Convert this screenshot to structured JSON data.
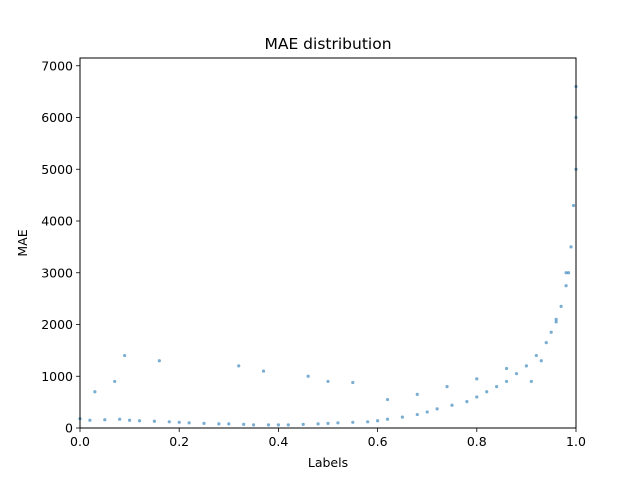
{
  "chart_data": {
    "type": "scatter",
    "title": "MAE distribution",
    "xlabel": "Labels",
    "ylabel": "MAE",
    "xlim": [
      0.0,
      1.0
    ],
    "ylim": [
      0,
      7150
    ],
    "xticks": [
      0.0,
      0.2,
      0.4,
      0.6,
      0.8,
      1.0
    ],
    "xtick_labels": [
      "0.0",
      "0.2",
      "0.4",
      "0.6",
      "0.8",
      "1.0"
    ],
    "yticks": [
      0,
      1000,
      2000,
      3000,
      4000,
      5000,
      6000,
      7000
    ],
    "ytick_labels": [
      "0",
      "1000",
      "2000",
      "3000",
      "4000",
      "5000",
      "6000",
      "7000"
    ],
    "grid": false,
    "legend": "none",
    "point_color": "#1f77b4",
    "series": [
      {
        "x": [
          0.0,
          0.02,
          0.05,
          0.08,
          0.1,
          0.12,
          0.15,
          0.18,
          0.2,
          0.22,
          0.25,
          0.28,
          0.3,
          0.33,
          0.35,
          0.38,
          0.4,
          0.42,
          0.45,
          0.48,
          0.5,
          0.52,
          0.55,
          0.58,
          0.6,
          0.62,
          0.65,
          0.68,
          0.7,
          0.72,
          0.75,
          0.78,
          0.8,
          0.82,
          0.84,
          0.86,
          0.88,
          0.9,
          0.92,
          0.94,
          0.95,
          0.96,
          0.97,
          0.98,
          0.985,
          0.99,
          0.995,
          1.0,
          1.0,
          1.0,
          0.03,
          0.07,
          0.09,
          0.16,
          0.32,
          0.37,
          0.46,
          0.5,
          0.55,
          0.62,
          0.68,
          0.74,
          0.8,
          0.86,
          0.91,
          0.93,
          0.96,
          0.98
        ],
        "y": [
          180,
          150,
          160,
          170,
          150,
          140,
          130,
          120,
          110,
          100,
          90,
          80,
          80,
          70,
          60,
          60,
          60,
          60,
          70,
          80,
          90,
          100,
          110,
          120,
          140,
          170,
          210,
          260,
          310,
          370,
          440,
          510,
          600,
          700,
          800,
          900,
          1050,
          1200,
          1400,
          1650,
          1850,
          2050,
          2350,
          2750,
          3000,
          3500,
          4300,
          5000,
          6000,
          6600,
          700,
          900,
          1400,
          1300,
          1200,
          1100,
          1000,
          900,
          880,
          550,
          650,
          800,
          950,
          1150,
          900,
          1300,
          2100,
          3000
        ]
      }
    ]
  }
}
